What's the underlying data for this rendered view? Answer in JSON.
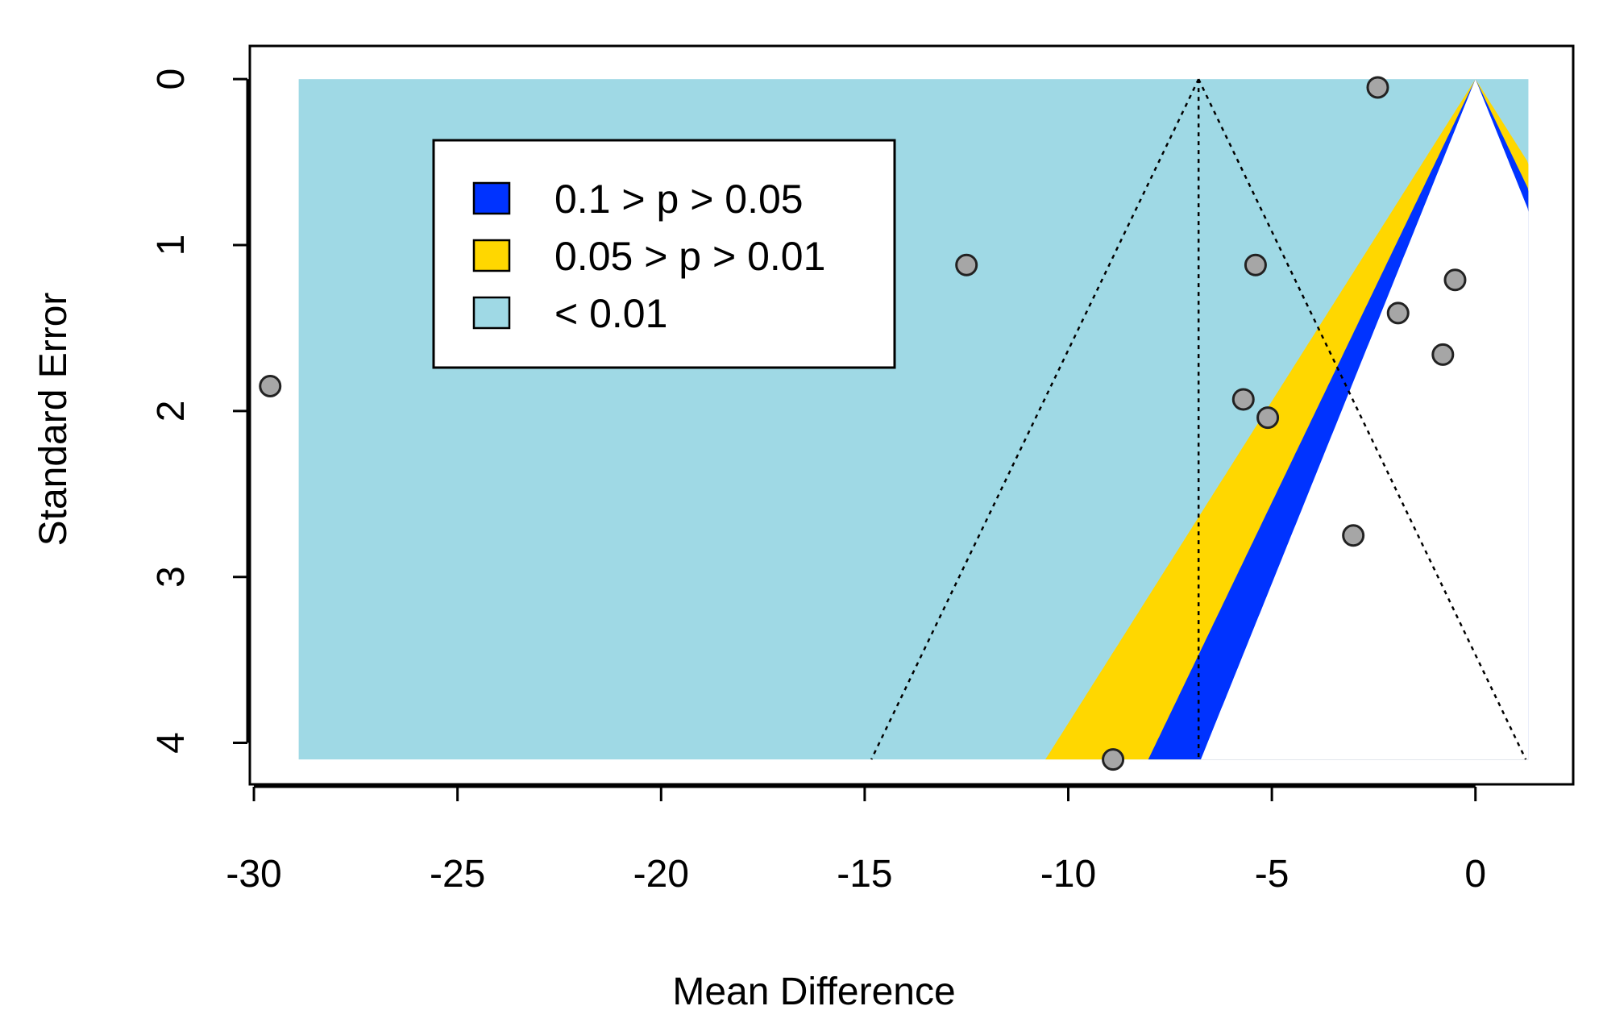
{
  "chart_data": {
    "type": "scatter",
    "subtype": "contour-enhanced funnel plot",
    "title": "",
    "xlabel": "Mean Difference",
    "ylabel": "Standard Error",
    "xlim": [
      -30.1,
      2.4
    ],
    "ylim": [
      4.25,
      -0.2
    ],
    "y_axis_inverted": true,
    "x_ticks": [
      -30,
      -25,
      -20,
      -15,
      -10,
      -5,
      0
    ],
    "x_tick_labels": [
      "-30",
      "-25",
      "-20",
      "-15",
      "-10",
      "-5",
      "0"
    ],
    "y_ticks": [
      0,
      1,
      2,
      3,
      4
    ],
    "y_tick_labels": [
      "0",
      "1",
      "2",
      "3",
      "4"
    ],
    "grid": false,
    "legend_position": "top-left",
    "contour_reference": 0,
    "contour_x_range": [
      -28.9,
      1.3
    ],
    "se_max": 4.1,
    "legend": [
      {
        "label": "0.1 > p > 0.05",
        "color": "#0033ff",
        "z": 1.645
      },
      {
        "label": "0.05 > p > 0.01",
        "color": "#ffd700",
        "z": 1.96
      },
      {
        "label": "< 0.01",
        "color": "#9fd9e5",
        "z": 2.576
      }
    ],
    "funnel": {
      "center": -6.8,
      "z": 1.96,
      "linestyle": "dotted"
    },
    "points": [
      {
        "x": -29.6,
        "y": 1.85
      },
      {
        "x": -12.5,
        "y": 1.12
      },
      {
        "x": -8.9,
        "y": 4.1
      },
      {
        "x": -5.7,
        "y": 1.93
      },
      {
        "x": -5.4,
        "y": 1.12
      },
      {
        "x": -5.1,
        "y": 2.04
      },
      {
        "x": -3.0,
        "y": 2.75
      },
      {
        "x": -2.4,
        "y": 0.05
      },
      {
        "x": -1.9,
        "y": 1.41
      },
      {
        "x": -0.8,
        "y": 1.66
      },
      {
        "x": -0.5,
        "y": 1.21
      }
    ],
    "colors": {
      "background": "#ffffff",
      "point_fill": "#a6a6a6",
      "point_stroke": "#222222",
      "axis": "#000000"
    }
  }
}
